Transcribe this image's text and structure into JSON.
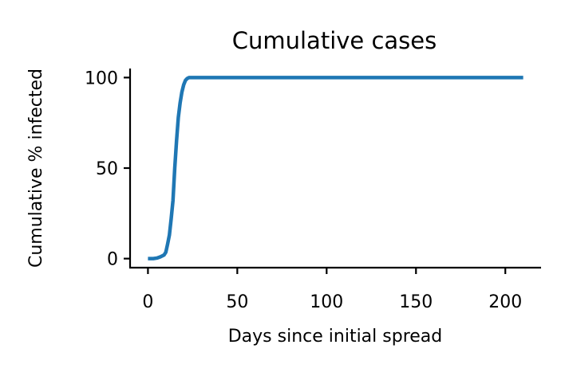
{
  "chart_data": {
    "type": "line",
    "title": "Cumulative cases",
    "xlabel": "Days since initial spread",
    "ylabel": "Cumulative % infected",
    "xlim": [
      -10,
      220
    ],
    "ylim": [
      -5,
      105
    ],
    "xticks": [
      0,
      50,
      100,
      150,
      200
    ],
    "yticks": [
      0,
      50,
      100
    ],
    "grid": false,
    "legend": "none",
    "series": [
      {
        "color": "#1f77b4",
        "x": [
          0,
          3,
          5,
          7,
          9,
          10,
          11,
          12,
          13,
          14,
          15,
          16,
          17,
          18,
          19,
          20,
          21,
          22,
          23,
          25,
          30,
          50,
          100,
          150,
          200,
          210
        ],
        "y": [
          0,
          0,
          0.3,
          1,
          2,
          3.5,
          8,
          13,
          22,
          32,
          50,
          65,
          78,
          86,
          92,
          96,
          98.5,
          99.5,
          100,
          100,
          100,
          100,
          100,
          100,
          100,
          100
        ]
      }
    ]
  }
}
